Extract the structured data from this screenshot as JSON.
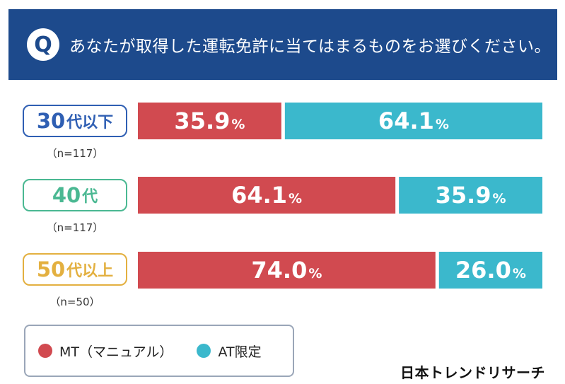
{
  "header": {
    "q_icon": "Q",
    "question": "あなたが取得した運転免許に当てはまるものをお選びください。"
  },
  "rows": [
    {
      "label_main": "30",
      "label_suffix": "代以下",
      "n": "（n=117）"
    },
    {
      "label_main": "40",
      "label_suffix": "代",
      "n": "（n=117）"
    },
    {
      "label_main": "50",
      "label_suffix": "代以上",
      "n": "（n=50）"
    }
  ],
  "legend": [
    {
      "label": "MT（マニュアル）",
      "color": "#d14a50"
    },
    {
      "label": "AT限定",
      "color": "#3bb8cc"
    }
  ],
  "brand": "日本トレンドリサーチ",
  "colors": {
    "header": "#1d4a8c",
    "row_30": "#2f5fb3",
    "row_40": "#4ab892",
    "row_50": "#e3b040"
  },
  "chart_data": {
    "type": "bar",
    "orientation": "horizontal-stacked-100",
    "categories": [
      "30代以下",
      "40代",
      "50代以上"
    ],
    "series": [
      {
        "name": "MT（マニュアル）",
        "values": [
          35.9,
          64.1,
          74.0
        ],
        "color": "#d14a50"
      },
      {
        "name": "AT限定",
        "values": [
          64.1,
          35.9,
          26.0
        ],
        "color": "#3bb8cc"
      }
    ],
    "value_labels": [
      [
        "35.9",
        "64.1",
        "74.0"
      ],
      [
        "64.1",
        "35.9",
        "26.0"
      ]
    ],
    "unit": "%",
    "xlim": [
      0,
      100
    ]
  }
}
